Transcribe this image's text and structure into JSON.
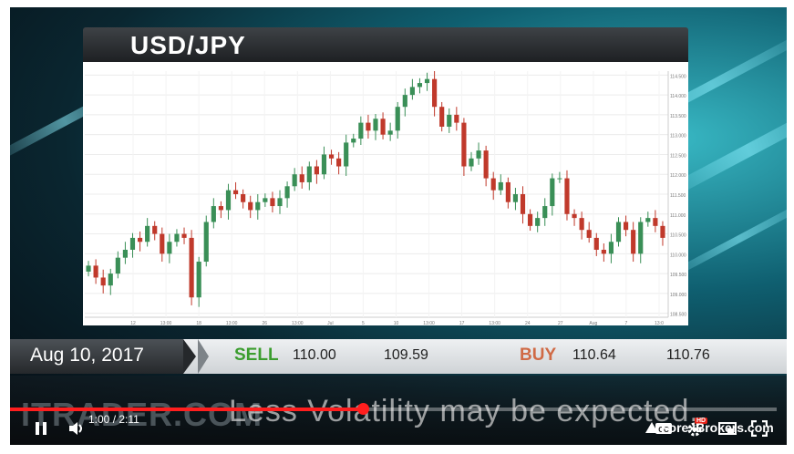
{
  "chart": {
    "title": "USD/JPY",
    "y_ticks": [
      "114.500",
      "114.000",
      "113.500",
      "113.000",
      "112.500",
      "112.000",
      "111.500",
      "111.000",
      "110.500",
      "110.000",
      "109.500",
      "109.000",
      "108.500"
    ],
    "x_ticks": [
      "12",
      "13:00",
      "18",
      "13:00",
      "26",
      "13:00",
      "Jul",
      "5",
      "10",
      "13:00",
      "17",
      "13:00",
      "24",
      "27",
      "Aug",
      "7",
      "13:0"
    ]
  },
  "chart_data": {
    "type": "candlestick",
    "title": "USD/JPY",
    "ylim": [
      108.4,
      114.6
    ],
    "closes": [
      109.7,
      109.4,
      109.2,
      109.5,
      109.9,
      110.1,
      110.4,
      110.3,
      110.7,
      110.5,
      110.0,
      110.3,
      110.5,
      110.4,
      108.9,
      109.8,
      110.8,
      111.2,
      111.1,
      111.6,
      111.5,
      111.3,
      111.1,
      111.3,
      111.4,
      111.2,
      111.4,
      111.7,
      112.0,
      111.8,
      112.2,
      112.0,
      112.5,
      112.4,
      112.2,
      112.8,
      112.9,
      113.3,
      113.1,
      113.4,
      113.0,
      113.1,
      113.7,
      114.0,
      114.2,
      114.3,
      114.4,
      113.7,
      113.2,
      113.5,
      113.3,
      112.2,
      112.4,
      112.6,
      111.9,
      111.6,
      111.8,
      111.3,
      111.5,
      111.0,
      110.7,
      110.9,
      111.2,
      111.9,
      111.9,
      111.0,
      110.9,
      110.6,
      110.4,
      110.1,
      110.0,
      110.3,
      110.8,
      110.6,
      110.0,
      110.8,
      110.9,
      110.7,
      110.4
    ]
  },
  "ticker": {
    "date": "Aug 10, 2017",
    "sell_label": "SELL",
    "sell_bid": "110.00",
    "sell_ask": "109.59",
    "buy_label": "BUY",
    "buy_bid": "110.64",
    "buy_ask": "110.76"
  },
  "overlay": {
    "watermark": "ITRADER.COM",
    "caption": "Less Volatility may be expected."
  },
  "player": {
    "time": "1:00 / 2:11",
    "progress": 0.46,
    "hd_badge": "HD",
    "cc_label": "CC",
    "brand": "ForexBrokers.com",
    "icons": [
      "pause-icon",
      "volume-icon",
      "captions-icon",
      "settings-icon",
      "miniplayer-icon",
      "fullscreen-icon"
    ]
  },
  "colors": {
    "up": "#3a8f57",
    "down": "#c0392b",
    "sell": "#3b9d2e",
    "buy": "#d06a45",
    "progress": "#ff1e1e"
  }
}
